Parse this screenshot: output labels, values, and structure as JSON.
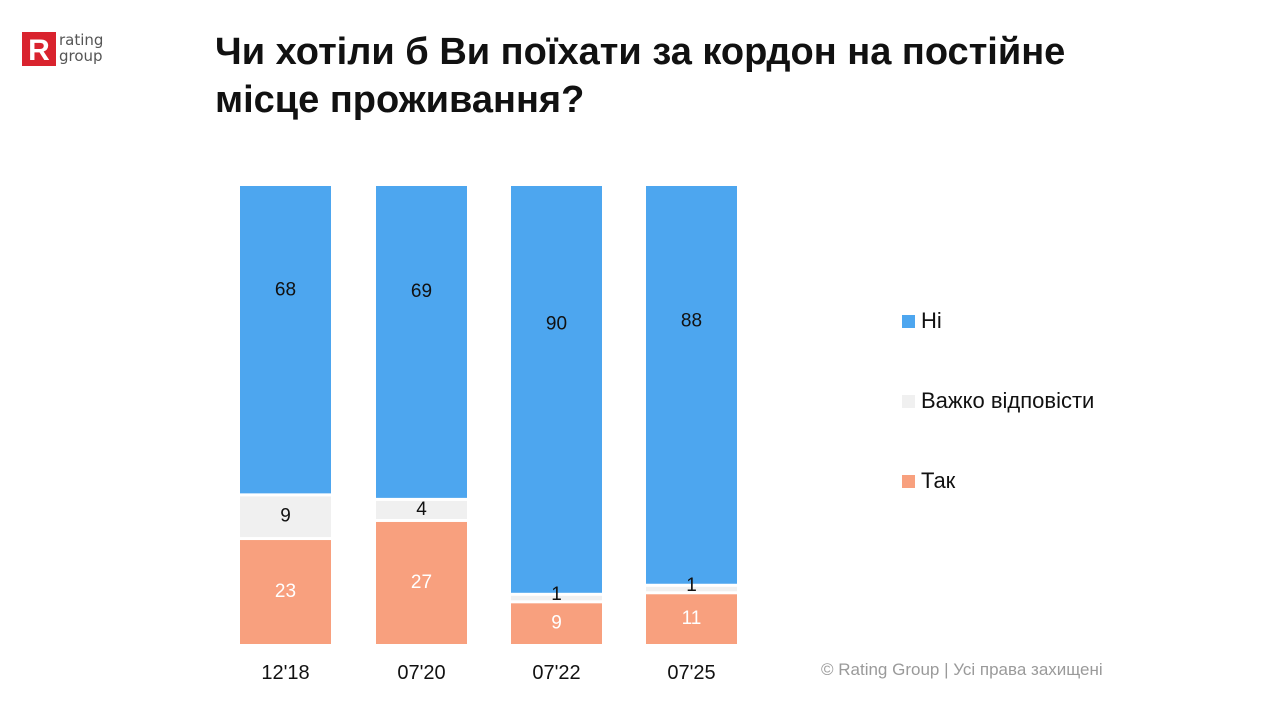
{
  "logo": {
    "mark_letter": "R",
    "line1": "rating",
    "line2": "group",
    "brand_color": "#d9232e"
  },
  "header": {
    "title_line1": "Чи хотіли б Ви поїхати за кордон на постійне",
    "title_line2": "місце проживання?"
  },
  "chart_data": {
    "type": "bar",
    "stacked": true,
    "percent_stacked": true,
    "categories": [
      "12'18",
      "07'20",
      "07'22",
      "07'25"
    ],
    "series": [
      {
        "name": "Так",
        "values": [
          23,
          27,
          9,
          11
        ],
        "color": "#f8a07e",
        "label_color": "#ffffff"
      },
      {
        "name": "Важко відповісти",
        "values": [
          9,
          4,
          1,
          1
        ],
        "color": "#f0f0f0",
        "label_color": "#111111"
      },
      {
        "name": "Ні",
        "values": [
          68,
          69,
          90,
          88
        ],
        "color": "#4da6ef",
        "label_color": "#111111"
      }
    ],
    "ylim": [
      0,
      100
    ],
    "grid": false,
    "legend_position": "right",
    "legend_order": [
      "Ні",
      "Важко відповісти",
      "Так"
    ]
  },
  "footer": {
    "copyright": "© Rating Group | Усі права захищені"
  }
}
